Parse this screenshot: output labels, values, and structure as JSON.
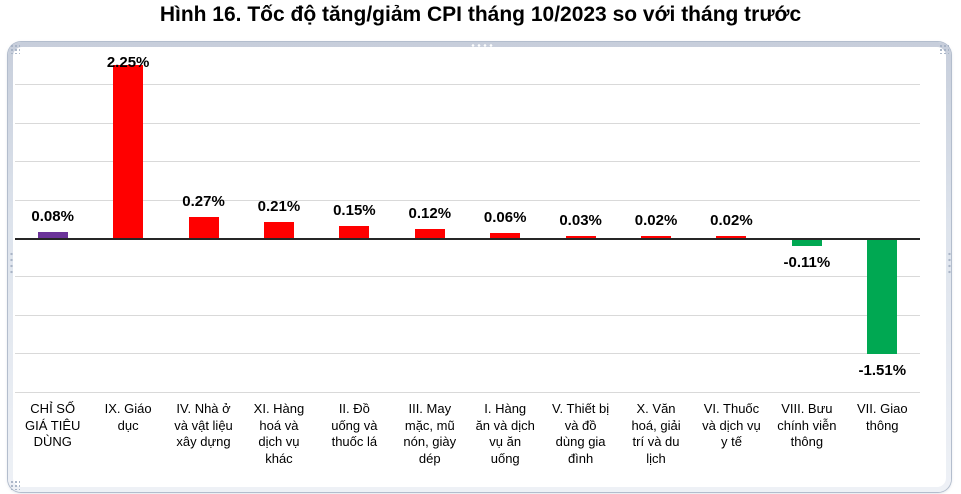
{
  "title": "Hình 16. Tốc độ tăng/giảm CPI tháng 10/2023 so với tháng trước",
  "chart_data": {
    "type": "bar",
    "title": "Hình 16. Tốc độ tăng/giảm CPI tháng 10/2023 so với tháng trước",
    "xlabel": "",
    "ylabel": "",
    "legend": "none",
    "grid": true,
    "grid_step": 0.5,
    "grid_range": [
      -2.0,
      2.0
    ],
    "ylim": [
      -2.0,
      2.6
    ],
    "unit": "%",
    "categories": [
      "CHỈ SỐ GIÁ TIÊU DÙNG",
      "IX. Giáo dục",
      "IV. Nhà ở và vật liệu xây dựng",
      "XI. Hàng hoá và dịch vụ khác",
      "II. Đồ uống và thuốc lá",
      "III. May mặc, mũ nón, giày dép",
      "I. Hàng ăn và dịch vụ ăn uống",
      "V. Thiết bị và đồ dùng gia đình",
      "X. Văn hoá, giải trí và du lịch",
      "VI. Thuốc và dịch vụ y tế",
      "VIII. Bưu chính viễn thông",
      "VII. Giao thông"
    ],
    "categories_wrapped": [
      "CHỈ SỐ\nGIÁ TIÊU\nDÙNG",
      "IX. Giáo\ndục",
      "IV. Nhà ở\nvà vật liệu\nxây dựng",
      "XI. Hàng\nhoá và\ndịch vụ\nkhác",
      "II. Đồ\nuống và\nthuốc lá",
      "III. May\nmặc, mũ\nnón, giày\ndép",
      "I. Hàng\năn và dịch\nvụ ăn\nuống",
      "V. Thiết bị\nvà đồ\ndùng gia\nđình",
      "X. Văn\nhoá, giải\ntrí và du\nlịch",
      "VI. Thuốc\nvà dịch vụ\ny tế",
      "VIII. Bưu\nchính viễn\nthông",
      "VII. Giao\nthông"
    ],
    "values": [
      0.08,
      2.25,
      0.27,
      0.21,
      0.15,
      0.12,
      0.06,
      0.03,
      0.02,
      0.02,
      -0.11,
      -1.51
    ],
    "value_labels": [
      "0.08%",
      "2.25%",
      "0.27%",
      "0.21%",
      "0.15%",
      "0.12%",
      "0.06%",
      "0.03%",
      "0.02%",
      "0.02%",
      "-0.11%",
      "-1.51%"
    ],
    "bar_colors": [
      "#6B3399",
      "#FF0000",
      "#FF0000",
      "#FF0000",
      "#FF0000",
      "#FF0000",
      "#FF0000",
      "#FF0000",
      "#FF0000",
      "#FF0000",
      "#00A852",
      "#00A852"
    ],
    "colors": {
      "cpi_overall": "#6B3399",
      "increase": "#FF0000",
      "decrease": "#00A852",
      "gridline": "#D9D9D9",
      "axis": "#262626"
    }
  }
}
